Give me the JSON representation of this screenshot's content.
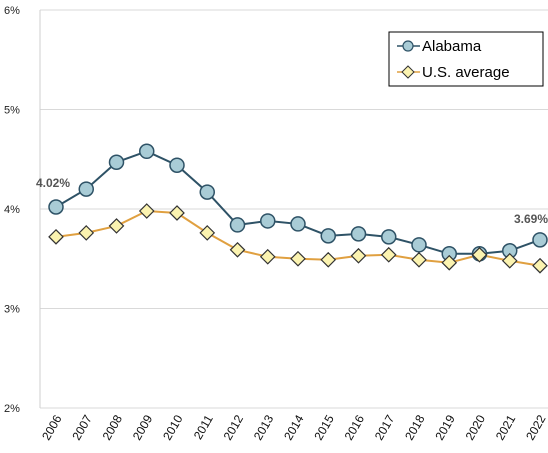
{
  "chart_data": {
    "type": "line",
    "categories": [
      "2006",
      "2007",
      "2008",
      "2009",
      "2010",
      "2011",
      "2012",
      "2013",
      "2014",
      "2015",
      "2016",
      "2017",
      "2018",
      "2019",
      "2020",
      "2021",
      "2022"
    ],
    "series": [
      {
        "name": "Alabama",
        "color": "#2e5266",
        "marker": "circle",
        "marker_fill": "#a9ccd6",
        "values": [
          4.02,
          4.2,
          4.47,
          4.58,
          4.44,
          4.17,
          3.84,
          3.88,
          3.85,
          3.73,
          3.75,
          3.72,
          3.64,
          3.55,
          3.55,
          3.58,
          3.69
        ]
      },
      {
        "name": "U.S. average",
        "color": "#e0a040",
        "marker": "diamond",
        "marker_fill": "#fbf3b0",
        "values": [
          3.72,
          3.76,
          3.83,
          3.98,
          3.96,
          3.76,
          3.59,
          3.52,
          3.5,
          3.49,
          3.53,
          3.54,
          3.49,
          3.46,
          3.54,
          3.48,
          3.43
        ]
      }
    ],
    "ylim": [
      2,
      6
    ],
    "yticks": [
      "2%",
      "3%",
      "4%",
      "5%",
      "6%"
    ],
    "grid": true,
    "legend": "top-right",
    "annotations": {
      "first": "4.02%",
      "last": "3.69%"
    }
  }
}
